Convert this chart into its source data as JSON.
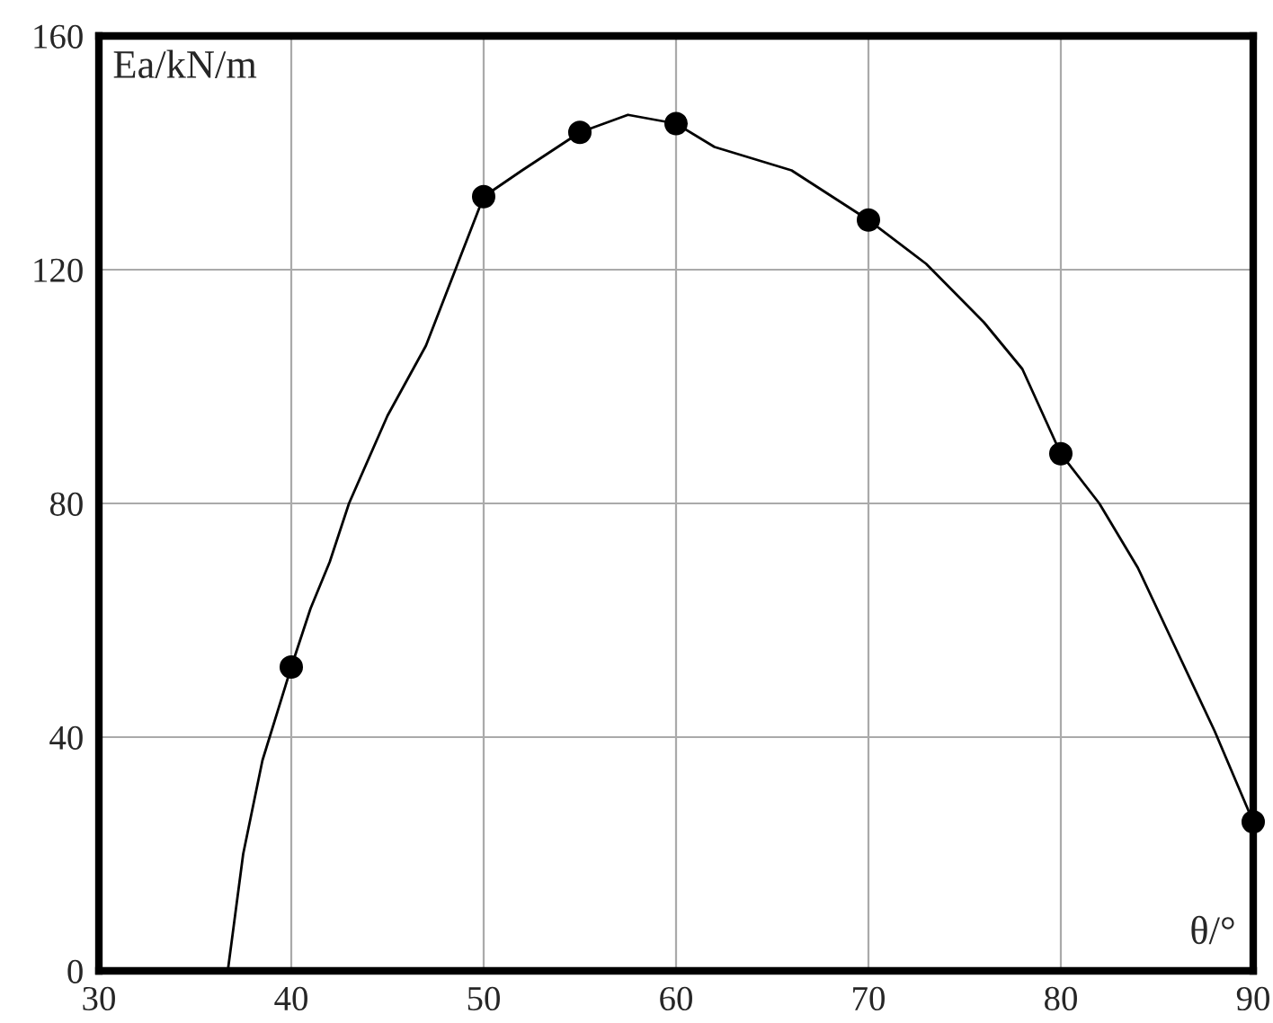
{
  "chart_data": {
    "type": "line",
    "xlabel": "θ/°",
    "ylabel": "Ea/kN/m",
    "series": [
      {
        "color": "#000000",
        "marker": "none",
        "x": [
          36.7,
          37.5,
          38.5,
          40,
          41,
          42,
          43,
          45,
          47,
          50,
          52,
          55,
          57.5,
          60,
          62,
          66,
          70,
          73,
          76,
          78,
          80,
          82,
          84,
          86,
          88,
          90
        ],
        "values": [
          0,
          20,
          36,
          52,
          62,
          70,
          80,
          95,
          107,
          132.5,
          137,
          143.5,
          146.5,
          145,
          141,
          137,
          128.5,
          121,
          111,
          103,
          88.5,
          80,
          69,
          55,
          41,
          25.5
        ]
      },
      {
        "type": "scatter",
        "color": "#000000",
        "marker": "circle",
        "x": [
          40,
          50,
          55,
          60,
          70,
          80,
          90
        ],
        "values": [
          52,
          132.5,
          143.5,
          145,
          128.5,
          88.5,
          25.5
        ]
      }
    ],
    "xlim": [
      30,
      90
    ],
    "ylim": [
      0,
      160
    ],
    "xticks": [
      30,
      40,
      50,
      60,
      70,
      80,
      90
    ],
    "yticks": [
      0,
      40,
      80,
      120,
      160
    ],
    "grid": true,
    "legend": false
  }
}
